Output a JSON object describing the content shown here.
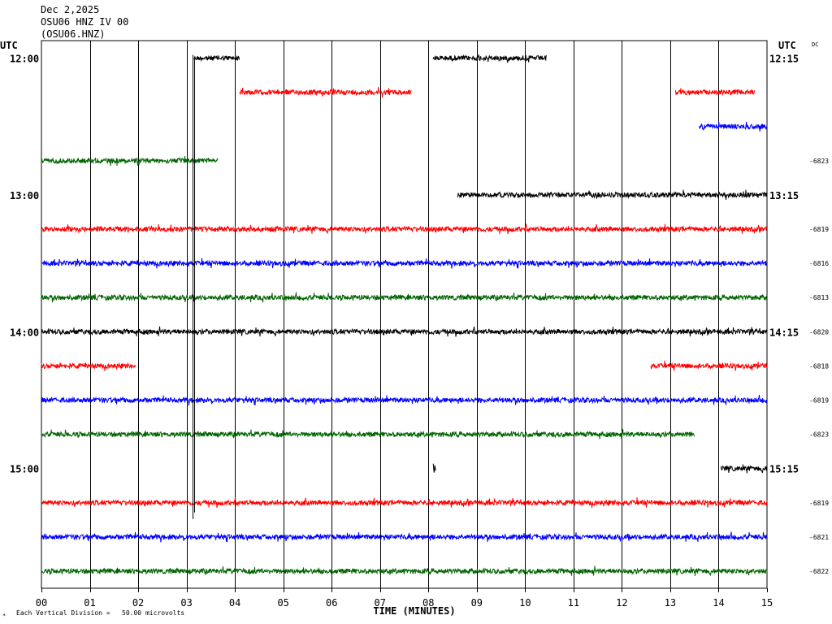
{
  "header": {
    "date": "Dec 2,2025",
    "station": "OSU06 HNZ IV 00",
    "channel": "(OSU06.HNZ)"
  },
  "labels": {
    "utc_left": "UTC",
    "utc_right": "UTC",
    "dc": "DC",
    "footer_note": "Each Vertical Division =   50.00 microvolts",
    "footer_mark": "*"
  },
  "colors": {
    "trace_cycle": [
      "#000000",
      "#ff0000",
      "#0000ff",
      "#006400"
    ],
    "grid": "#000000"
  },
  "chart_data": {
    "type": "line",
    "title": "",
    "xlabel": "TIME (MINUTES)",
    "ylabel": "",
    "x_ticks": [
      "00",
      "01",
      "02",
      "03",
      "04",
      "05",
      "06",
      "07",
      "08",
      "09",
      "10",
      "11",
      "12",
      "13",
      "14",
      "15"
    ],
    "xlim": [
      0,
      15
    ],
    "rows": [
      {
        "left": "12:00",
        "right": "12:15",
        "value": "",
        "segments": [
          [
            3.15,
            4.1
          ],
          [
            8.1,
            10.45
          ]
        ]
      },
      {
        "left": "",
        "right": "",
        "value": "",
        "segments": [
          [
            4.1,
            7.65
          ],
          [
            13.1,
            14.75
          ]
        ]
      },
      {
        "left": "",
        "right": "",
        "value": "",
        "segments": [
          [
            13.6,
            15.0
          ]
        ]
      },
      {
        "left": "",
        "right": "",
        "value": "-6823",
        "segments": [
          [
            0.0,
            3.65
          ]
        ]
      },
      {
        "left": "13:00",
        "right": "13:15",
        "value": "",
        "segments": [
          [
            8.6,
            15.0
          ]
        ]
      },
      {
        "left": "",
        "right": "",
        "value": "-6819",
        "segments": [
          [
            0.0,
            15.0
          ]
        ]
      },
      {
        "left": "",
        "right": "",
        "value": "-6816",
        "segments": [
          [
            0.0,
            15.0
          ]
        ]
      },
      {
        "left": "",
        "right": "",
        "value": "-6813",
        "segments": [
          [
            0.0,
            15.0
          ]
        ]
      },
      {
        "left": "14:00",
        "right": "14:15",
        "value": "-6820",
        "segments": [
          [
            0.0,
            15.0
          ]
        ]
      },
      {
        "left": "",
        "right": "",
        "value": "-6818",
        "segments": [
          [
            0.0,
            1.95
          ],
          [
            12.6,
            15.0
          ]
        ]
      },
      {
        "left": "",
        "right": "",
        "value": "-6819",
        "segments": [
          [
            0.0,
            15.0
          ]
        ]
      },
      {
        "left": "",
        "right": "",
        "value": "-6823",
        "segments": [
          [
            0.0,
            13.5
          ]
        ]
      },
      {
        "left": "15:00",
        "right": "15:15",
        "value": "",
        "segments": [
          [
            8.1,
            8.15
          ],
          [
            14.05,
            15.0
          ]
        ]
      },
      {
        "left": "",
        "right": "",
        "value": "-6819",
        "segments": [
          [
            0.0,
            15.0
          ]
        ]
      },
      {
        "left": "",
        "right": "",
        "value": "-6821",
        "segments": [
          [
            0.0,
            15.0
          ]
        ]
      },
      {
        "left": "",
        "right": "",
        "value": "-6822",
        "segments": [
          [
            0.0,
            15.0
          ]
        ]
      }
    ]
  }
}
